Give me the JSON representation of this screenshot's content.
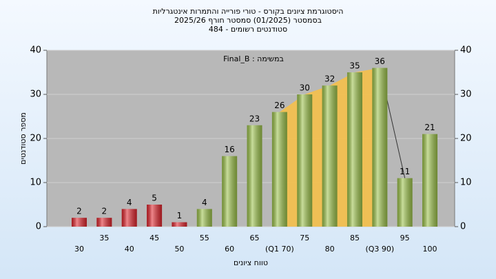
{
  "chart_data": {
    "type": "bar",
    "title": [
      "היסטוגרמת ציונים בקורס - טורי פורייה והתמרות אינטגרליות",
      "בסמסטר (01/2025) סמסטר חורף 2025/26",
      "484 - סטודנטים רשומים"
    ],
    "annotation": "Final_B : במשימה",
    "x_label": "טווח ציונים",
    "y_label": "מספר סטודנטים",
    "categories": [
      "30",
      "35",
      "40",
      "45",
      "50",
      "55",
      "60",
      "65",
      "(Q1 70)",
      "75",
      "80",
      "85",
      "(Q3 90)",
      "95",
      "100"
    ],
    "values": [
      2,
      2,
      4,
      5,
      1,
      4,
      16,
      23,
      26,
      30,
      32,
      35,
      36,
      11,
      21
    ],
    "bar_colors": [
      "#e0242c",
      "#e0242c",
      "#e0242c",
      "#e0242c",
      "#e0242c",
      "#9cc24a",
      "#9cc24a",
      "#9cc24a",
      "#9cc24a",
      "#9cc24a",
      "#9cc24a",
      "#9cc24a",
      "#9cc24a",
      "#9cc24a",
      "#9cc24a"
    ],
    "ylim": [
      0,
      40
    ],
    "yticks": [
      0,
      10,
      20,
      30,
      40
    ],
    "y2lim": [
      0,
      40
    ],
    "y2ticks": [
      0,
      10,
      20,
      30,
      40
    ],
    "grid": true
  }
}
